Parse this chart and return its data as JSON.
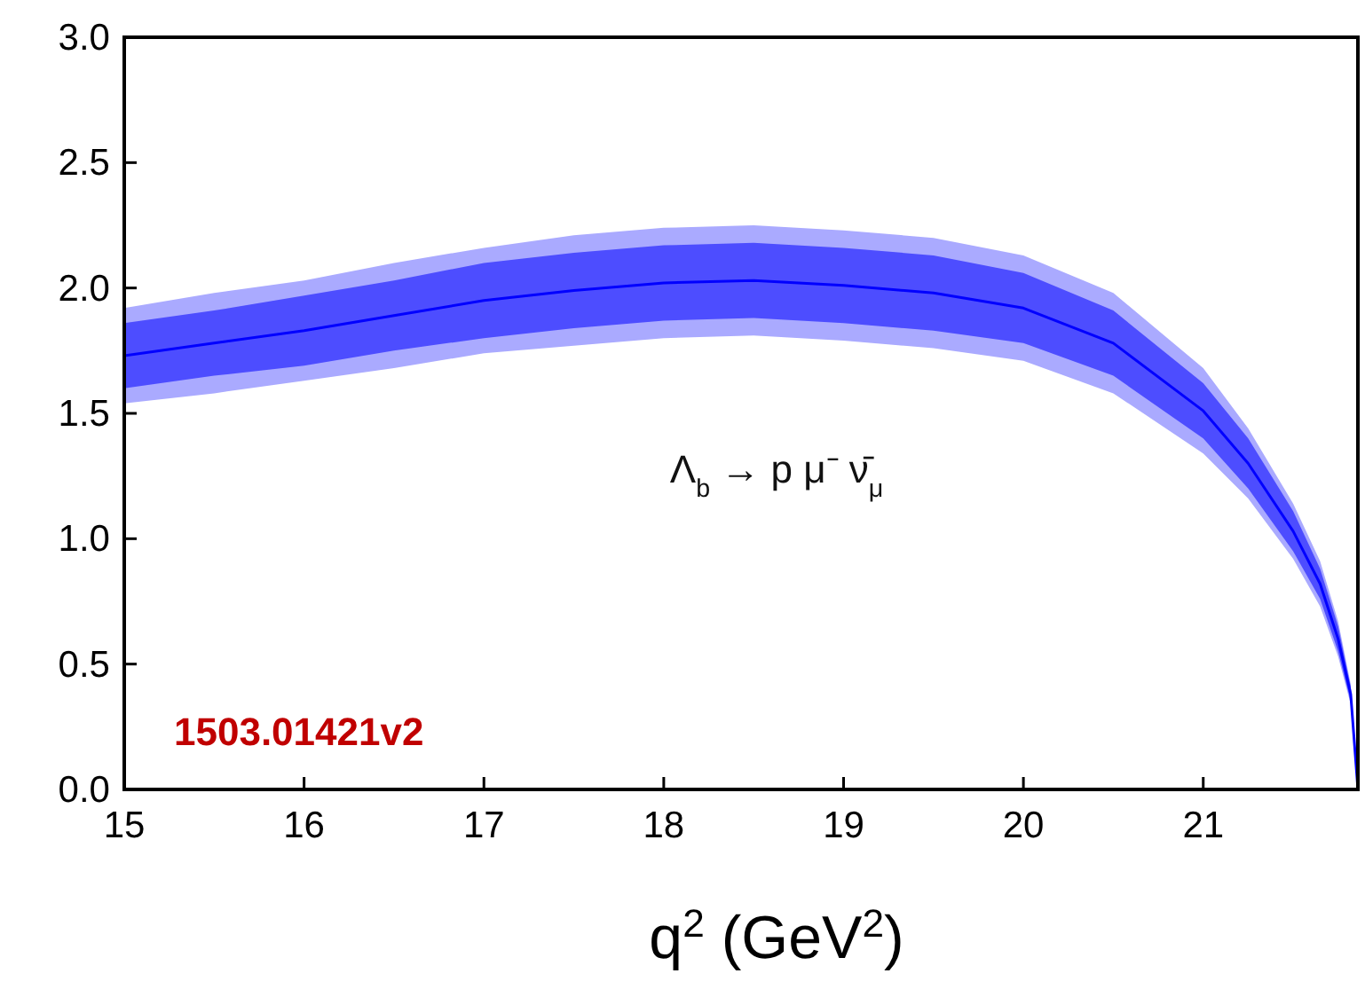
{
  "chart_data": {
    "type": "line",
    "xlabel": "q$^{2}$  (GeV$^{2}$)",
    "annotations": [
      "Λ$_{b}$ → p μ⁻ ν̄$_{μ}$",
      "1503.01421v2"
    ],
    "x": [
      15,
      15.5,
      16,
      16.5,
      17,
      17.5,
      18,
      18.5,
      19,
      19.5,
      20,
      20.5,
      21,
      21.25,
      21.5,
      21.65,
      21.75,
      21.82,
      21.86
    ],
    "series": [
      {
        "color": "#0000ff",
        "values": [
          1.73,
          1.78,
          1.83,
          1.89,
          1.95,
          1.99,
          2.02,
          2.03,
          2.01,
          1.98,
          1.92,
          1.78,
          1.51,
          1.3,
          1.03,
          0.82,
          0.6,
          0.38,
          0
        ],
        "lower": [
          1.6,
          1.65,
          1.69,
          1.75,
          1.8,
          1.84,
          1.87,
          1.88,
          1.86,
          1.83,
          1.78,
          1.65,
          1.4,
          1.2,
          0.95,
          0.76,
          0.55,
          0.35,
          0
        ],
        "upper": [
          1.86,
          1.91,
          1.97,
          2.03,
          2.1,
          2.14,
          2.17,
          2.18,
          2.16,
          2.13,
          2.06,
          1.91,
          1.62,
          1.4,
          1.11,
          0.88,
          0.65,
          0.41,
          0
        ]
      },
      {
        "color": "#aaaaff",
        "values": [
          null,
          null,
          null,
          null,
          null,
          null,
          null,
          null,
          null,
          null,
          null,
          null,
          null,
          null,
          null,
          null,
          null,
          null,
          null
        ],
        "lower": [
          1.54,
          1.58,
          1.63,
          1.68,
          1.74,
          1.77,
          1.8,
          1.81,
          1.79,
          1.76,
          1.71,
          1.58,
          1.34,
          1.16,
          0.92,
          0.73,
          0.53,
          0.34,
          0
        ],
        "upper": [
          1.92,
          1.98,
          2.03,
          2.1,
          2.16,
          2.21,
          2.24,
          2.25,
          2.23,
          2.2,
          2.13,
          1.98,
          1.68,
          1.44,
          1.14,
          0.91,
          0.67,
          0.42,
          0
        ]
      }
    ],
    "xlim": [
      15,
      21.86
    ],
    "ylim": [
      0,
      3
    ],
    "xticks": [
      15,
      16,
      17,
      18,
      19,
      20,
      21
    ],
    "yticks": [
      {
        "value": 0,
        "label": "0.0"
      },
      {
        "value": 0.5,
        "label": "0.5"
      },
      {
        "value": 1,
        "label": "1.0"
      },
      {
        "value": 1.5,
        "label": "1.5"
      },
      {
        "value": 2,
        "label": "2.0"
      },
      {
        "value": 2.5,
        "label": "2.5"
      },
      {
        "value": 3,
        "label": "3.0"
      }
    ],
    "grid": false,
    "marker": "none",
    "line_style": "solid"
  }
}
